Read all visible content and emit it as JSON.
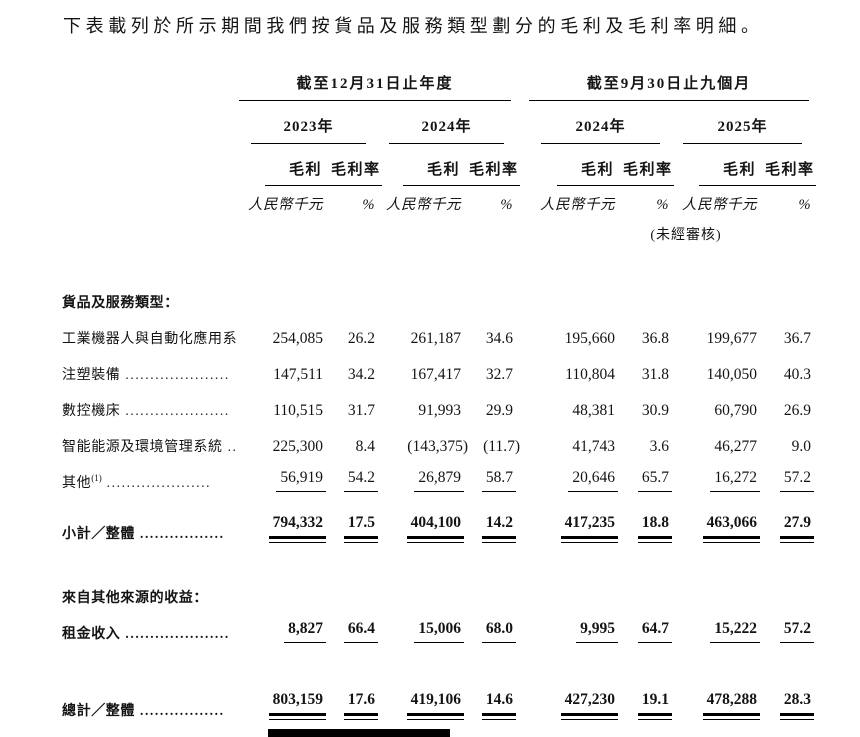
{
  "title": "下表載列於所示期間我們按貨品及服務類型劃分的毛利及毛利率明細。",
  "table": {
    "period_groups": [
      {
        "label": "截至12月31日止年度",
        "years": [
          "2023年",
          "2024年"
        ]
      },
      {
        "label": "截至9月30日止九個月",
        "years": [
          "2024年",
          "2025年"
        ]
      }
    ],
    "col_headers": {
      "gross_profit": "毛利",
      "margin": "毛利率"
    },
    "units": {
      "currency": "人民幣千元",
      "percent": "%",
      "unaudited_note": "(未經審核)"
    },
    "rows": [
      {
        "kind": "section",
        "label": "貨品及服務類型：",
        "bold": true
      },
      {
        "kind": "item",
        "label": "工業機器人與自動化應用系統",
        "dots": "..",
        "values": [
          "254,085",
          "26.2",
          "261,187",
          "34.6",
          "195,660",
          "36.8",
          "199,677",
          "36.7"
        ]
      },
      {
        "kind": "item",
        "label": "注塑裝備",
        "dots": ".....................",
        "values": [
          "147,511",
          "34.2",
          "167,417",
          "32.7",
          "110,804",
          "31.8",
          "140,050",
          "40.3"
        ]
      },
      {
        "kind": "item",
        "label": "數控機床",
        "dots": ".....................",
        "values": [
          "110,515",
          "31.7",
          "91,993",
          "29.9",
          "48,381",
          "30.9",
          "60,790",
          "26.9"
        ]
      },
      {
        "kind": "item",
        "label": "智能能源及環境管理系統",
        "dots": "......",
        "values": [
          "225,300",
          "8.4",
          "(143,375)",
          "(11.7)",
          "41,743",
          "3.6",
          "46,277",
          "9.0"
        ]
      },
      {
        "kind": "item",
        "label": "其他",
        "sup": "(1)",
        "dots": ".....................",
        "rule": "single",
        "values": [
          "56,919",
          "54.2",
          "26,879",
          "58.7",
          "20,646",
          "65.7",
          "16,272",
          "57.2"
        ]
      },
      {
        "kind": "subtotal",
        "label": "小計／整體",
        "dots": ".................",
        "bold": true,
        "rule": "double",
        "values": [
          "794,332",
          "17.5",
          "404,100",
          "14.2",
          "417,235",
          "18.8",
          "463,066",
          "27.9"
        ]
      },
      {
        "kind": "section2",
        "label": "來自其他來源的收益：",
        "bold": true
      },
      {
        "kind": "rental",
        "label": "租金收入",
        "dots": ".....................",
        "bold": true,
        "rule": "single",
        "values": [
          "8,827",
          "66.4",
          "15,006",
          "68.0",
          "9,995",
          "64.7",
          "15,222",
          "57.2"
        ]
      },
      {
        "kind": "total",
        "label": "總計／整體",
        "dots": ".................",
        "bold": true,
        "rule": "double",
        "values": [
          "803,159",
          "17.6",
          "419,106",
          "14.6",
          "427,230",
          "19.1",
          "478,288",
          "28.3"
        ]
      }
    ]
  }
}
